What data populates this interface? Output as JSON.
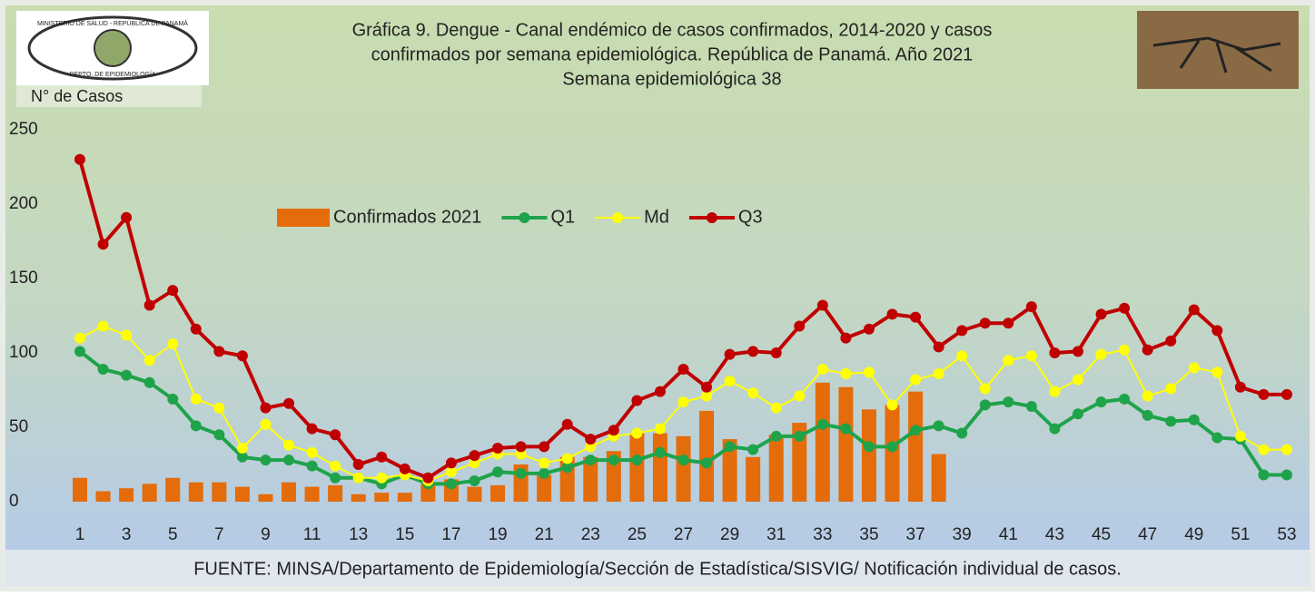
{
  "chart_data": {
    "type": "bar_line",
    "title_lines": [
      "Gráfica 9. Dengue - Canal endémico de casos confirmados, 2014-2020 y casos",
      "confirmados por semana epidemiológica. República de Panamá. Año 2021",
      "Semana epidemiológica 38"
    ],
    "y_label": "N° de Casos",
    "source": "FUENTE: MINSA/Departamento de Epidemiología/Sección de Estadística/SISVIG/ Notificación individual de casos.",
    "logo_texts": [
      "MINISTERIO DE SALUD - REPÚBLICA DE PANAMÁ",
      "DEPTO. DE EPIDEMIOLOGÍA"
    ],
    "categories": [
      1,
      null,
      3,
      null,
      5,
      null,
      7,
      null,
      9,
      null,
      11,
      null,
      13,
      null,
      15,
      null,
      17,
      null,
      19,
      null,
      21,
      null,
      23,
      null,
      25,
      null,
      27,
      null,
      29,
      null,
      31,
      null,
      33,
      null,
      35,
      null,
      37,
      null,
      39,
      null,
      41,
      null,
      43,
      null,
      45,
      null,
      47,
      null,
      49,
      null,
      51,
      null,
      53
    ],
    "ylim": [
      0,
      250
    ],
    "yticks": [
      0,
      50,
      100,
      150,
      200,
      250
    ],
    "grid": false,
    "series": [
      {
        "name": "Confirmados 2021",
        "kind": "bar",
        "color": "#e46c0a",
        "values": [
          16,
          7,
          9,
          12,
          16,
          13,
          13,
          10,
          5,
          13,
          10,
          11,
          5,
          6,
          6,
          12,
          15,
          10,
          11,
          25,
          18,
          30,
          30,
          34,
          46,
          46,
          44,
          61,
          42,
          30,
          45,
          53,
          80,
          77,
          62,
          65,
          74,
          32,
          null,
          null,
          null,
          null,
          null,
          null,
          null,
          null,
          null,
          null,
          null,
          null,
          null,
          null,
          null
        ]
      },
      {
        "name": "Q1",
        "kind": "line",
        "color": "#1fa34a",
        "values": [
          101,
          89,
          85,
          80,
          69,
          51,
          45,
          30,
          28,
          28,
          24,
          16,
          16,
          12,
          18,
          12,
          12,
          14,
          20,
          19,
          19,
          23,
          28,
          28,
          28,
          33,
          28,
          26,
          37,
          35,
          44,
          44,
          52,
          49,
          37,
          37,
          48,
          51,
          46,
          65,
          67,
          64,
          49,
          59,
          67,
          69,
          58,
          54,
          55,
          43,
          42,
          18,
          18
        ]
      },
      {
        "name": "Md",
        "kind": "line",
        "color": "#ffff00",
        "values": [
          110,
          118,
          112,
          95,
          106,
          69,
          63,
          36,
          52,
          38,
          33,
          24,
          16,
          16,
          18,
          14,
          20,
          26,
          32,
          32,
          26,
          29,
          37,
          44,
          46,
          49,
          67,
          71,
          81,
          73,
          63,
          71,
          89,
          86,
          87,
          65,
          82,
          86,
          98,
          76,
          95,
          98,
          74,
          82,
          99,
          102,
          71,
          76,
          90,
          87,
          44,
          35,
          35
        ]
      },
      {
        "name": "Q3",
        "kind": "line",
        "color": "#c00000",
        "values": [
          230,
          173,
          191,
          132,
          142,
          116,
          101,
          98,
          63,
          66,
          49,
          45,
          25,
          30,
          22,
          16,
          26,
          31,
          36,
          37,
          37,
          52,
          42,
          48,
          68,
          74,
          89,
          77,
          99,
          101,
          100,
          118,
          132,
          110,
          116,
          126,
          124,
          104,
          115,
          120,
          120,
          131,
          100,
          101,
          126,
          130,
          102,
          108,
          129,
          115,
          77,
          72,
          72
        ]
      }
    ]
  }
}
